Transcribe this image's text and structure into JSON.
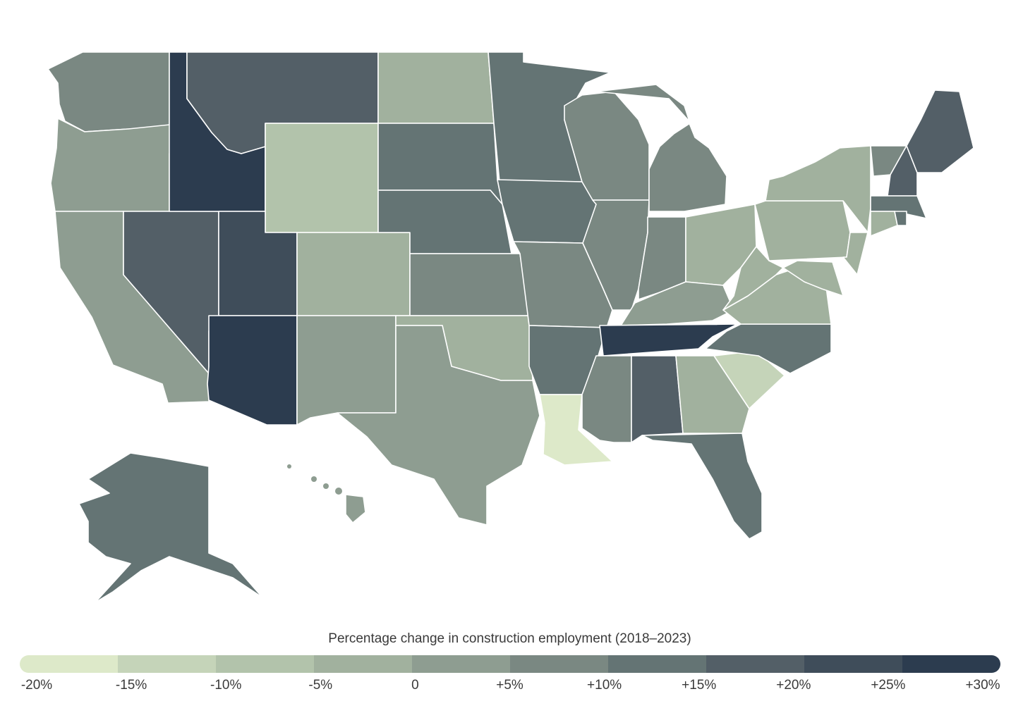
{
  "legend": {
    "title": "Percentage change in construction employment (2018–2023)",
    "colors": [
      "#dde9c9",
      "#c5d4b9",
      "#b2c3ab",
      "#a1b19e",
      "#8e9d91",
      "#7a8882",
      "#647474",
      "#535f67",
      "#3f4d5a",
      "#2c3c4f"
    ],
    "ticks": [
      "-20%",
      "-15%",
      "-10%",
      "-5%",
      "0",
      "+5%",
      "+10%",
      "+15%",
      "+20%",
      "+25%",
      "+30%"
    ]
  },
  "map_data": {
    "type": "choropleth",
    "region": "United States",
    "bins": [
      {
        "range": "-20% to -15%",
        "states": [
          "LA"
        ]
      },
      {
        "range": "-15% to -10%",
        "states": [
          "SC"
        ]
      },
      {
        "range": "-10% to -5%",
        "states": [
          "WY"
        ]
      },
      {
        "range": "-5% to 0",
        "states": [
          "ND",
          "CO",
          "OK",
          "GA",
          "NY",
          "PA",
          "OH",
          "WV",
          "VA",
          "MD",
          "NJ",
          "CT"
        ]
      },
      {
        "range": "0 to +5%",
        "states": [
          "CA",
          "NM",
          "TX",
          "KY",
          "HI",
          "OR"
        ]
      },
      {
        "range": "+5% to +10%",
        "states": [
          "WA",
          "KS",
          "MO",
          "IL",
          "WI",
          "MI",
          "IN",
          "MS",
          "VT"
        ]
      },
      {
        "range": "+10% to +15%",
        "states": [
          "SD",
          "NE",
          "MN",
          "IA",
          "AR",
          "NC",
          "FL",
          "AK",
          "MA",
          "RI"
        ]
      },
      {
        "range": "+15% to +20%",
        "states": [
          "MT",
          "NV",
          "AL",
          "ME",
          "NH"
        ]
      },
      {
        "range": "+20% to +25%",
        "states": [
          "UT"
        ]
      },
      {
        "range": "+25% to +30%",
        "states": [
          "ID",
          "AZ",
          "TN"
        ]
      }
    ]
  }
}
